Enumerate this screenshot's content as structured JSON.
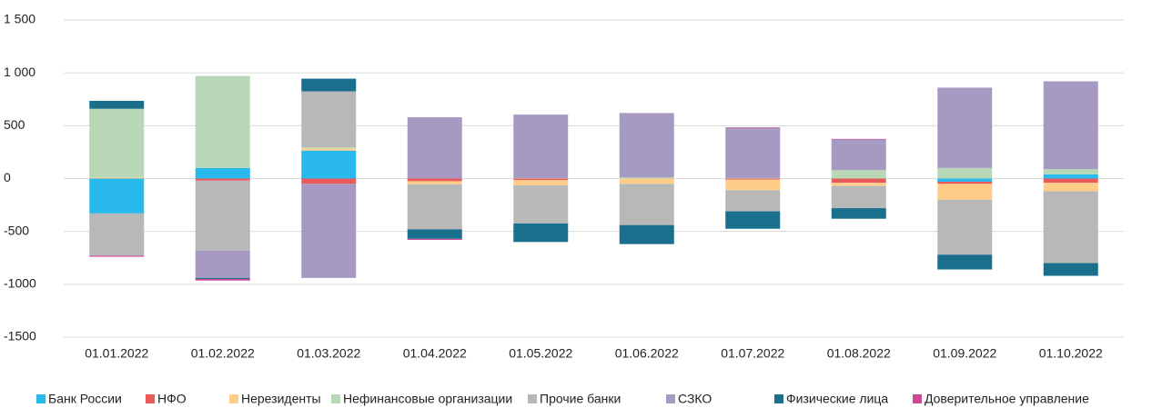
{
  "chart_data": {
    "type": "stacked_bar",
    "categories": [
      "01.01.2022",
      "01.02.2022",
      "01.03.2022",
      "01.04.2022",
      "01.05.2022",
      "01.06.2022",
      "01.07.2022",
      "01.08.2022",
      "01.09.2022",
      "01.10.2022"
    ],
    "series": [
      {
        "name": "Банк России",
        "color": "#29b9ed",
        "values": [
          -330,
          100,
          265,
          0,
          0,
          0,
          0,
          0,
          -30,
          40
        ]
      },
      {
        "name": "НФО",
        "color": "#eb5a5a",
        "values": [
          0,
          -20,
          -50,
          -25,
          -15,
          0,
          -10,
          -40,
          -20,
          -40
        ]
      },
      {
        "name": "Нерезиденты",
        "color": "#ffcc8a",
        "values": [
          10,
          0,
          20,
          -30,
          -50,
          -50,
          -100,
          -30,
          -150,
          -80
        ]
      },
      {
        "name": "Нефинансовые организации",
        "color": "#b7d7b7",
        "values": [
          650,
          870,
          10,
          0,
          5,
          10,
          5,
          80,
          100,
          50
        ]
      },
      {
        "name": "Прочие банки",
        "color": "#b8b8b8",
        "values": [
          -400,
          -660,
          530,
          -425,
          -360,
          -390,
          -200,
          -210,
          -520,
          -680
        ]
      },
      {
        "name": "СЗКО",
        "color": "#a699c2",
        "values": [
          0,
          -260,
          -890,
          580,
          600,
          610,
          475,
          290,
          760,
          830
        ]
      },
      {
        "name": "Физические лица",
        "color": "#196f8c",
        "values": [
          75,
          -10,
          120,
          -90,
          -175,
          -180,
          -165,
          -100,
          -140,
          -120
        ]
      },
      {
        "name": "Доверительное управление",
        "color": "#cc4a93",
        "values": [
          -10,
          -15,
          0,
          -10,
          0,
          0,
          5,
          5,
          0,
          0
        ]
      }
    ],
    "ylim": [
      -1500,
      1500
    ],
    "yticks": [
      {
        "value": -1500,
        "label": "-1500"
      },
      {
        "value": -1000,
        "label": "-1000"
      },
      -500,
      0,
      500,
      {
        "value": 1000,
        "label": "1 000"
      },
      {
        "value": 1500,
        "label": "1 500"
      }
    ],
    "grid": true
  }
}
